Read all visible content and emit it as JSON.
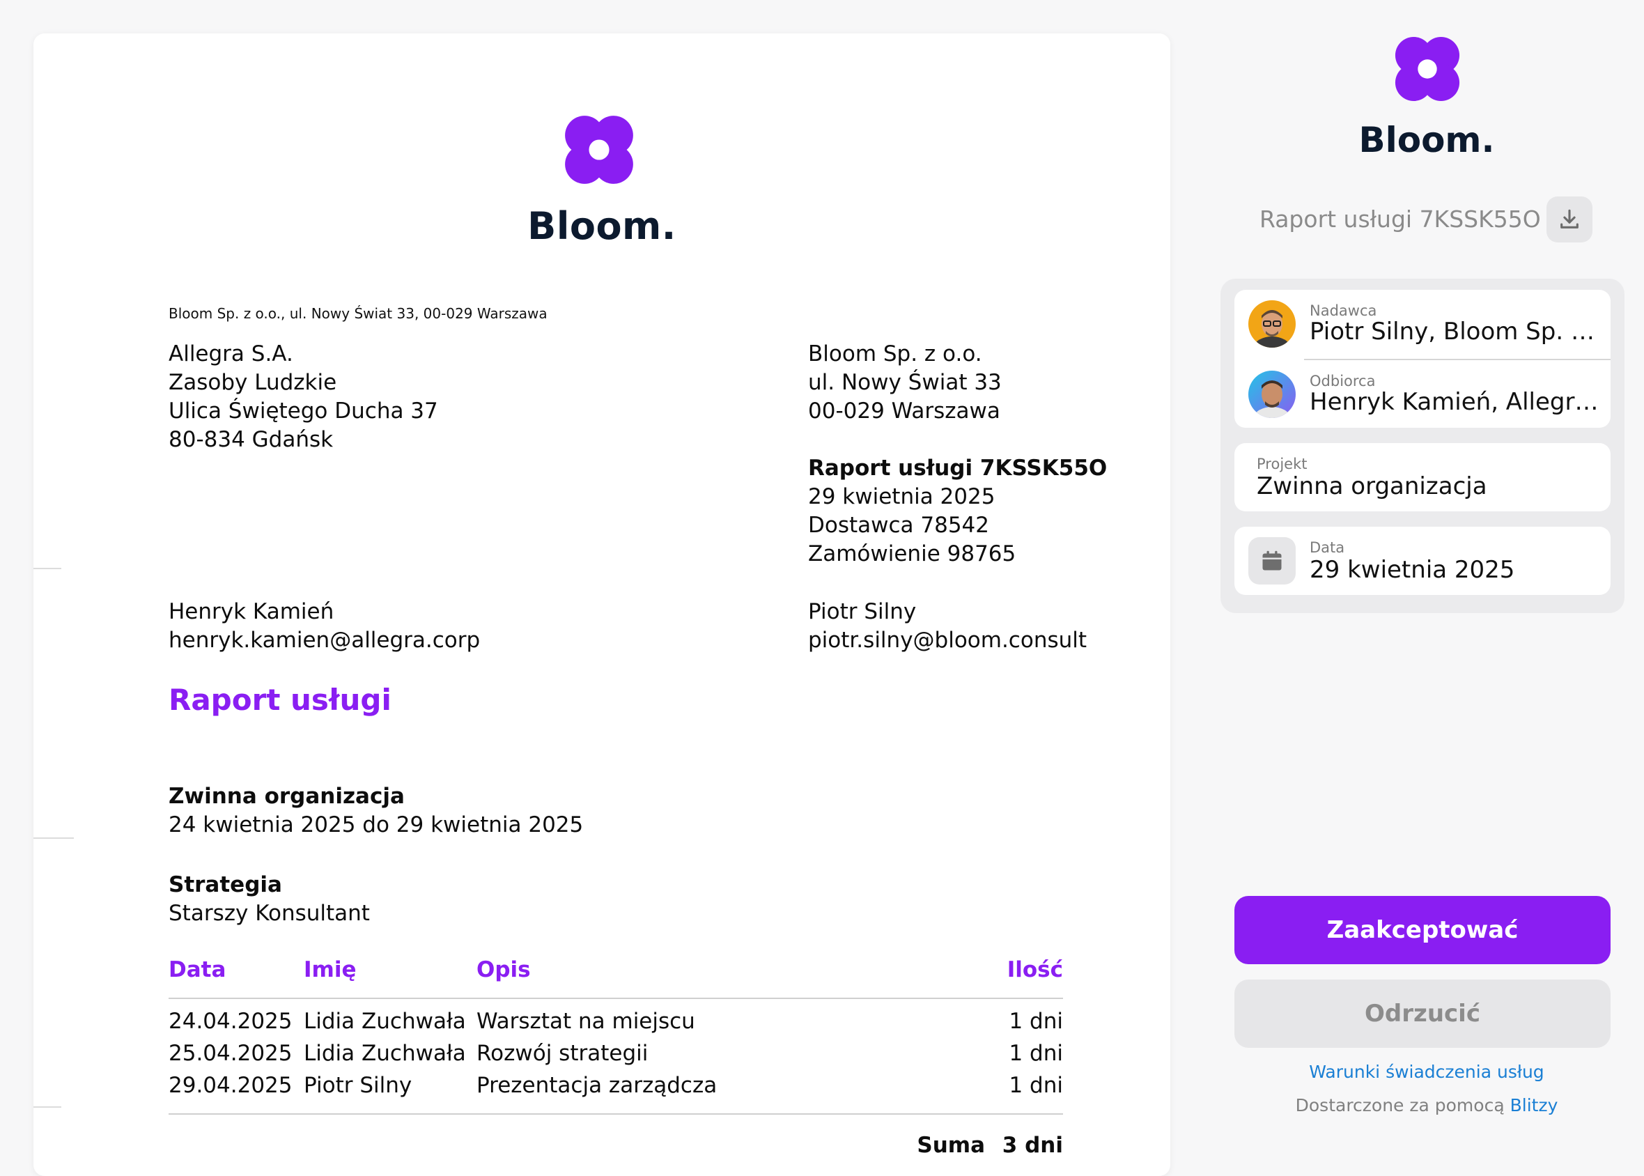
{
  "colors": {
    "accent": "#8a1ef2",
    "brand_text": "#0c1a2e",
    "link": "#1a7fd4"
  },
  "document": {
    "brand": "Bloom.",
    "sender_line": "Bloom Sp. z o.o., ul. Nowy Świat 33, 00-029 Warszawa",
    "recipient_address": [
      "Allegra S.A.",
      "Zasoby Ludzkie",
      "Ulica Świętego Ducha 37",
      "80-834 Gdańsk"
    ],
    "sender_address": [
      "Bloom Sp. z o.o.",
      "ul. Nowy Świat 33",
      "00-029 Warszawa"
    ],
    "report_heading": "Raport usługi 7KSSK55O",
    "report_lines": [
      "29 kwietnia 2025",
      "Dostawca 78542",
      "Zamówienie 98765"
    ],
    "recipient_contact": {
      "name": "Henryk Kamień",
      "email": "henryk.kamien@allegra.corp"
    },
    "sender_contact": {
      "name": "Piotr Silny",
      "email": "piotr.silny@bloom.consult"
    },
    "title": "Raport usługi",
    "project": {
      "name": "Zwinna organizacja",
      "period": "24 kwietnia 2025 do 29 kwietnia 2025"
    },
    "role": {
      "name": "Strategia",
      "title": "Starszy Konsultant"
    },
    "table": {
      "headers": {
        "date": "Data",
        "name": "Imię",
        "desc": "Opis",
        "qty": "Ilość"
      },
      "rows": [
        {
          "date": "24.04.2025",
          "name": "Lidia Zuchwała",
          "desc": "Warsztat na miejscu",
          "qty": "1 dni"
        },
        {
          "date": "25.04.2025",
          "name": "Lidia Zuchwała",
          "desc": "Rozwój strategii",
          "qty": "1 dni"
        },
        {
          "date": "29.04.2025",
          "name": "Piotr Silny",
          "desc": "Prezentacja zarządcza",
          "qty": "1 dni"
        }
      ],
      "sum_label": "Suma",
      "sum_value": "3 dni"
    }
  },
  "panel": {
    "brand": "Bloom.",
    "report_title": "Raport usługi 7KSSK55O",
    "download_icon": "download-icon",
    "sender": {
      "label": "Nadawca",
      "value": "Piotr Silny, Bloom Sp. z o.o."
    },
    "recipient": {
      "label": "Odbiorca",
      "value": "Henryk Kamień, Allegra S.A."
    },
    "project": {
      "label": "Projekt",
      "value": "Zwinna organizacja"
    },
    "date": {
      "label": "Data",
      "value": "29 kwietnia 2025"
    },
    "calendar_icon": "calendar-icon",
    "accept_label": "Zaakceptować",
    "reject_label": "Odrzucić",
    "terms_link": "Warunki świadczenia usług",
    "powered_prefix": "Dostarczone za pomocą",
    "powered_link": "Blitzy"
  }
}
